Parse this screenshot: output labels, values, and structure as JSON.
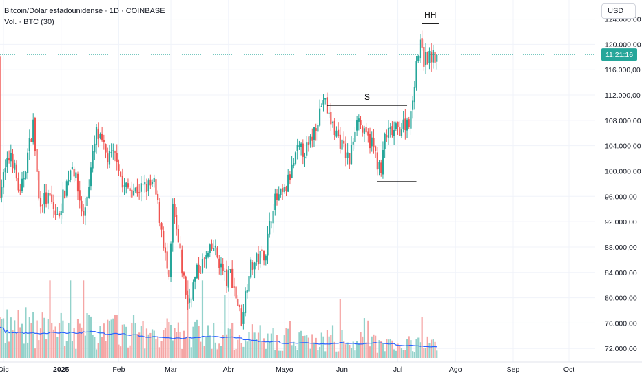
{
  "header": {
    "symbol_title": "Bitcoin/Dólar estadounidense · 1D · COINBASE",
    "volume_label": "Vol. · BTC (30)",
    "currency": "USD"
  },
  "colors": {
    "up": "#26a69a",
    "down": "#ef5350",
    "up_volume": "#93d2cb",
    "down_volume": "#f5a6a5",
    "volume_ma": "#2962ff",
    "price_line": "#26a69a",
    "annotation": "#000000"
  },
  "price_label": {
    "value": 118400,
    "text": "11:21:16"
  },
  "chart_data": {
    "type": "candlestick",
    "x_ticks": [
      {
        "label": "Dic",
        "date": "2024-12-01"
      },
      {
        "label": "2025",
        "date": "2025-01-01"
      },
      {
        "label": "Feb",
        "date": "2025-02-01"
      },
      {
        "label": "Mar",
        "date": "2025-03-01"
      },
      {
        "label": "Abr",
        "date": "2025-04-01"
      },
      {
        "label": "Mayo",
        "date": "2025-05-01"
      },
      {
        "label": "Jun",
        "date": "2025-06-01"
      },
      {
        "label": "Jul",
        "date": "2025-07-01"
      },
      {
        "label": "Ago",
        "date": "2025-08-01"
      },
      {
        "label": "Sep",
        "date": "2025-09-01"
      },
      {
        "label": "Oct",
        "date": "2025-10-01"
      }
    ],
    "y_ticks": [
      {
        "value": 72000,
        "label": "72.000,00"
      },
      {
        "value": 76000,
        "label": "76.000,00"
      },
      {
        "value": 80000,
        "label": "80.000,00"
      },
      {
        "value": 84000,
        "label": "84.000,00"
      },
      {
        "value": 88000,
        "label": "88.000,00"
      },
      {
        "value": 92000,
        "label": "92.000,00"
      },
      {
        "value": 96000,
        "label": "96.000,00"
      },
      {
        "value": 100000,
        "label": "100.000,00"
      },
      {
        "value": 104000,
        "label": "104.000,00"
      },
      {
        "value": 108000,
        "label": "108.000,00"
      },
      {
        "value": 112000,
        "label": "112.000,00"
      },
      {
        "value": 116000,
        "label": "116.000,00"
      },
      {
        "value": 120000,
        "label": "120.000,00"
      },
      {
        "value": 124000,
        "label": "124.000,00"
      }
    ],
    "ylim": [
      70500,
      127000
    ],
    "price_anchors": [
      [
        "2024-11-29",
        97000
      ],
      [
        "2024-12-05",
        103000
      ],
      [
        "2024-12-10",
        96000
      ],
      [
        "2024-12-17",
        107500
      ],
      [
        "2024-12-20",
        95500
      ],
      [
        "2024-12-26",
        95500
      ],
      [
        "2024-12-30",
        92500
      ],
      [
        "2025-01-07",
        101500
      ],
      [
        "2025-01-13",
        92500
      ],
      [
        "2025-01-20",
        106000
      ],
      [
        "2025-01-26",
        102000
      ],
      [
        "2025-01-31",
        102500
      ],
      [
        "2025-02-03",
        97500
      ],
      [
        "2025-02-10",
        97000
      ],
      [
        "2025-02-20",
        97800
      ],
      [
        "2025-02-24",
        91000
      ],
      [
        "2025-02-28",
        82000
      ],
      [
        "2025-03-02",
        94000
      ],
      [
        "2025-03-10",
        79000
      ],
      [
        "2025-03-15",
        84000
      ],
      [
        "2025-03-24",
        88000
      ],
      [
        "2025-03-31",
        82500
      ],
      [
        "2025-04-02",
        84000
      ],
      [
        "2025-04-08",
        76500
      ],
      [
        "2025-04-12",
        84500
      ],
      [
        "2025-04-21",
        87500
      ],
      [
        "2025-04-25",
        95000
      ],
      [
        "2025-05-01",
        96500
      ],
      [
        "2025-05-08",
        103000
      ],
      [
        "2025-05-14",
        103500
      ],
      [
        "2025-05-22",
        111500
      ],
      [
        "2025-05-25",
        108500
      ],
      [
        "2025-06-05",
        101500
      ],
      [
        "2025-06-09",
        109000
      ],
      [
        "2025-06-13",
        105500
      ],
      [
        "2025-06-17",
        104500
      ],
      [
        "2025-06-22",
        99500
      ],
      [
        "2025-06-24",
        105500
      ],
      [
        "2025-07-01",
        106500
      ],
      [
        "2025-07-08",
        108500
      ],
      [
        "2025-07-11",
        117500
      ],
      [
        "2025-07-14",
        120500
      ],
      [
        "2025-07-15",
        117500
      ],
      [
        "2025-07-18",
        118000
      ],
      [
        "2025-07-22",
        117800
      ]
    ],
    "volume_max": 72000,
    "annotations": [
      {
        "label": "S",
        "from": "2025-05-24",
        "to": "2025-07-06",
        "y": 110400
      },
      {
        "label": "",
        "from": "2025-06-20",
        "to": "2025-07-11",
        "y": 98300
      },
      {
        "label": "HH",
        "from": "2025-07-14",
        "to": "2025-07-23",
        "y": 123300
      }
    ]
  }
}
